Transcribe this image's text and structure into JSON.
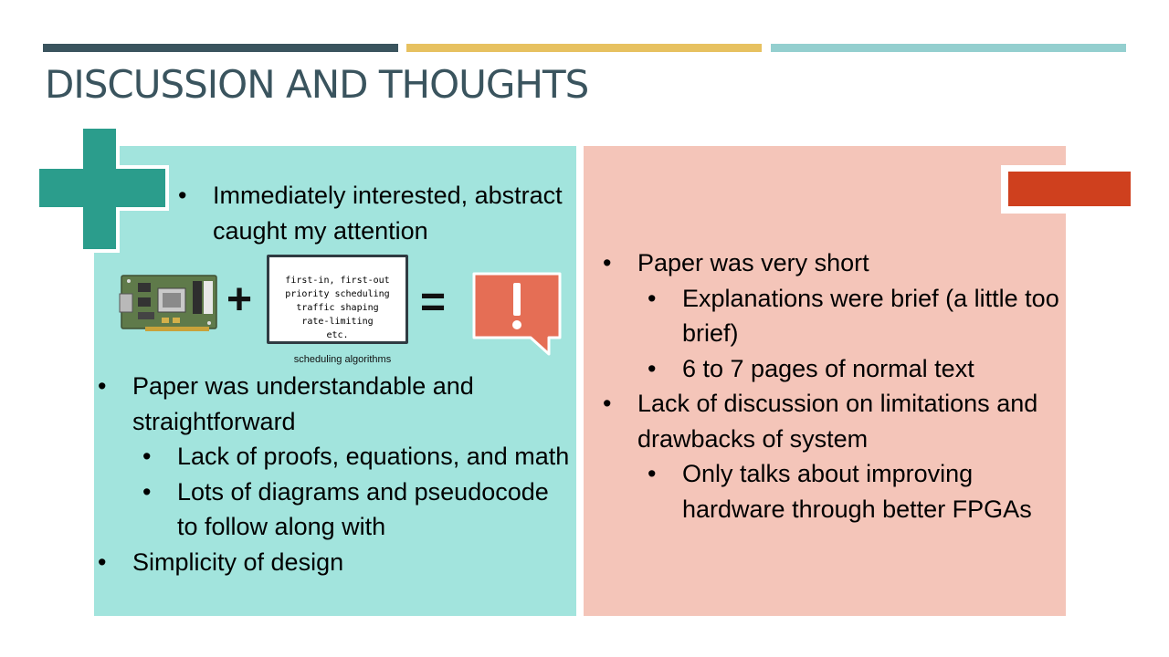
{
  "title": "DISCUSSION AND THOUGHTS",
  "colors": {
    "bar1": "#3a545e",
    "bar2": "#e7c160",
    "bar3": "#94cfcf",
    "pros_panel": "#a2e4dd",
    "cons_panel": "#f4c5b9",
    "plus_icon": "#2b9d8c",
    "minus_icon": "#cf401e",
    "alert_icon": "#e56e55"
  },
  "pros": {
    "icon": "plus-icon",
    "intro": [
      "Immediately interested, abstract caught my attention"
    ],
    "figure": {
      "fpga_image": "fpga-board-image",
      "plus_symbol": "+",
      "algorithms": [
        "first-in, first-out",
        "priority scheduling",
        "traffic shaping",
        "rate-limiting",
        "etc."
      ],
      "algorithms_caption": "scheduling algorithms",
      "equals_symbol": "=",
      "result_icon": "exclamation-speech-bubble-icon"
    },
    "items": [
      "Paper was understandable and straightforward",
      "Lack of proofs, equations, and math",
      "Lots of diagrams and pseudocode to follow along with",
      "Simplicity of design"
    ]
  },
  "cons": {
    "icon": "minus-icon",
    "items": [
      "Paper was very short",
      "Explanations were brief (a little too brief)",
      "6 to 7 pages of normal text",
      "Lack of discussion on limitations and drawbacks of system",
      "Only talks about improving hardware through better FPGAs"
    ]
  }
}
